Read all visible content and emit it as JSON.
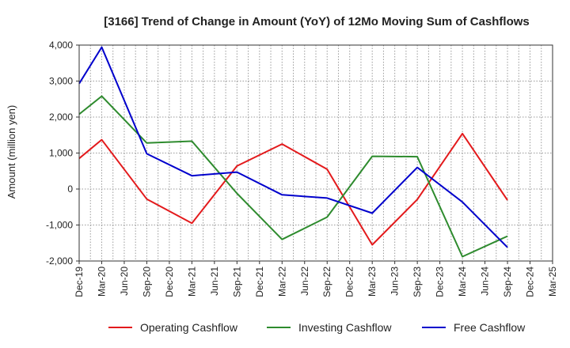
{
  "chart_data": {
    "type": "line",
    "title": "[3166]  Trend of Change in Amount (YoY) of 12Mo Moving Sum of Cashflows",
    "xlabel": "",
    "ylabel": "Amount (million yen)",
    "ylim": [
      -2000,
      4000
    ],
    "yticks": [
      -2000,
      -1000,
      0,
      1000,
      2000,
      3000,
      4000
    ],
    "ytick_labels": [
      "-2,000",
      "-1,000",
      "0",
      "1,000",
      "2,000",
      "3,000",
      "4,000"
    ],
    "categories": [
      "Dec-19",
      "Mar-20",
      "Jun-20",
      "Sep-20",
      "Dec-20",
      "Mar-21",
      "Jun-21",
      "Sep-21",
      "Dec-21",
      "Mar-22",
      "Jun-22",
      "Sep-22",
      "Dec-22",
      "Mar-23",
      "Jun-23",
      "Sep-23",
      "Dec-23",
      "Mar-24",
      "Jun-24",
      "Sep-24",
      "Dec-24",
      "Mar-25"
    ],
    "grid": true,
    "legend_position": "bottom",
    "series": [
      {
        "name": "Operating Cashflow",
        "color": "#e31a1c",
        "values": [
          850,
          1370,
          null,
          -280,
          null,
          -950,
          null,
          640,
          null,
          1250,
          null,
          550,
          null,
          -1550,
          null,
          -290,
          null,
          1540,
          null,
          -310,
          null,
          null
        ]
      },
      {
        "name": "Investing Cashflow",
        "color": "#2e8b2e",
        "values": [
          2080,
          2580,
          null,
          1280,
          null,
          1330,
          null,
          -120,
          null,
          -1400,
          null,
          -780,
          null,
          910,
          null,
          900,
          null,
          -1880,
          null,
          -1310,
          null,
          null
        ]
      },
      {
        "name": "Free Cashflow",
        "color": "#0000cc",
        "values": [
          2930,
          3940,
          null,
          980,
          null,
          370,
          null,
          470,
          null,
          -160,
          null,
          -250,
          null,
          -670,
          null,
          600,
          null,
          -360,
          null,
          -1620,
          null,
          null
        ]
      }
    ]
  }
}
